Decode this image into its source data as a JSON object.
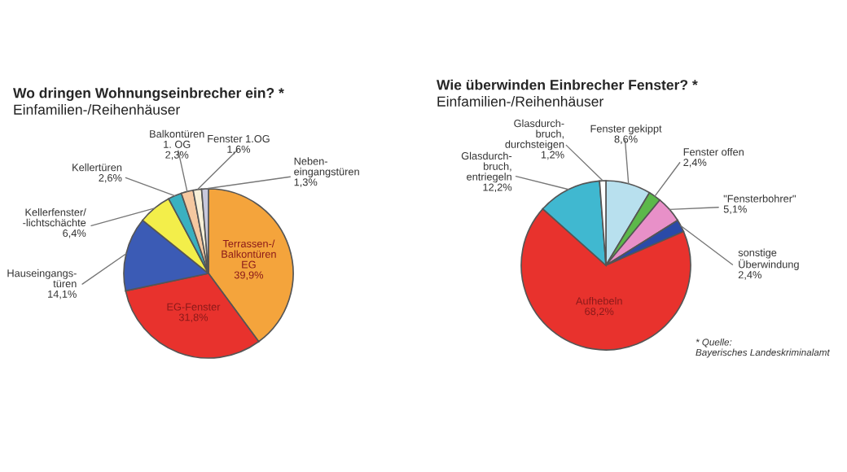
{
  "chart_data": [
    {
      "type": "pie",
      "title": "Wo dringen Wohnungseinbrecher ein? *",
      "subtitle": "Einfamilien-/Reihenhäuser",
      "categories": [
        "Terrassen-/\nBalkontüren\nEG",
        "EG-Fenster",
        "Hauseingangs-\ntüren",
        "Kellerfenster/\n-lichtschächte",
        "Kellertüren",
        "Balkontüren\n1. OG",
        "Fenster 1.OG",
        "Neben-\neingangstüren"
      ],
      "values": [
        39.9,
        31.8,
        14.1,
        6.4,
        2.6,
        2.3,
        1.6,
        1.3
      ],
      "value_labels": [
        "39,9%",
        "31,8%",
        "14,1%",
        "6,4%",
        "2,6%",
        "2,3%",
        "1,6%",
        "1,3%"
      ],
      "colors": [
        "#f4a43c",
        "#e8322d",
        "#3b5bb5",
        "#f3ee4a",
        "#3ab0c0",
        "#f5c8a0",
        "#f8f0d8",
        "#c8c8dc"
      ]
    },
    {
      "type": "pie",
      "title": "Wie überwinden Einbrecher Fenster? *",
      "subtitle": "Einfamilien-/Reihenhäuser",
      "categories": [
        "Fenster gekippt",
        "Fenster offen",
        "\"Fensterbohrer\"",
        "sonstige\nÜberwindung",
        "Aufhebeln",
        "Glasdurch-\nbruch,\nentriegeln",
        "Glasdurch-\nbruch,\ndurchsteigen"
      ],
      "values": [
        8.6,
        2.4,
        5.1,
        2.4,
        68.2,
        12.2,
        1.2
      ],
      "value_labels": [
        "8,6%",
        "2,4%",
        "5,1%",
        "2,4%",
        "68,2%",
        "12,2%",
        "1,2%"
      ],
      "colors": [
        "#b8e0ee",
        "#5cb84a",
        "#e890c8",
        "#2a4aa8",
        "#e8322d",
        "#40b8d0",
        "#ffffff"
      ],
      "annotations": [
        "* Quelle:\nBayerisches Landeskriminalamt"
      ]
    }
  ]
}
